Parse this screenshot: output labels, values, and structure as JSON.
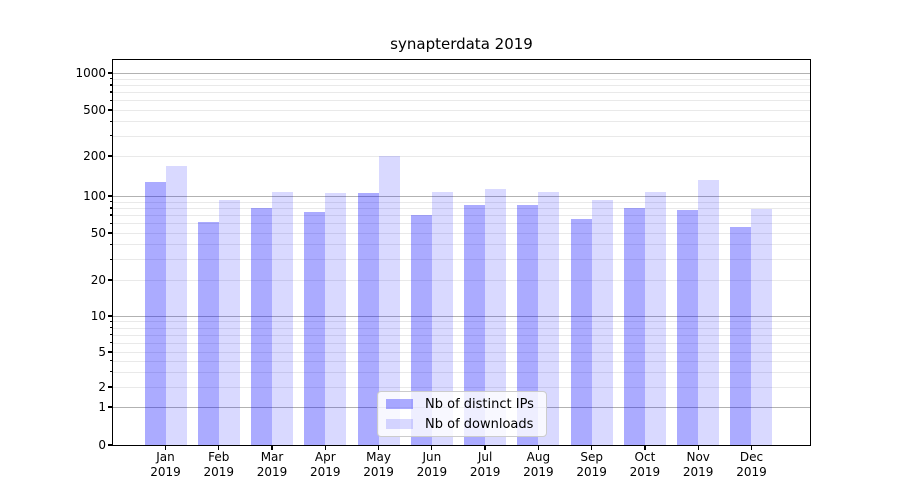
{
  "title": "synapterdata 2019",
  "chart_data": {
    "type": "bar",
    "title": "synapterdata 2019",
    "categories": [
      "Jan 2019",
      "Feb 2019",
      "Mar 2019",
      "Apr 2019",
      "May 2019",
      "Jun 2019",
      "Jul 2019",
      "Aug 2019",
      "Sep 2019",
      "Oct 2019",
      "Nov 2019",
      "Dec 2019"
    ],
    "series": [
      {
        "name": "Nb of distinct IPs",
        "color": "#aaaaff",
        "fill": "rgba(0,0,255,0.33)",
        "values": [
          128,
          62,
          80,
          74,
          106,
          70,
          84,
          84,
          65,
          80,
          77,
          56
        ]
      },
      {
        "name": "Nb of downloads",
        "color": "#d9d9ff",
        "fill": "rgba(0,0,255,0.15)",
        "values": [
          168,
          93,
          108,
          106,
          202,
          107,
          113,
          107,
          92,
          108,
          132,
          78
        ]
      }
    ],
    "xlabel": "",
    "ylabel": "",
    "yscale": "symlog",
    "yticks": [
      0,
      1,
      2,
      5,
      10,
      20,
      50,
      100,
      200,
      500,
      1000
    ],
    "ylim": [
      0,
      1280
    ],
    "grid": true,
    "grid_major_color": "#b2b2b2",
    "grid_minor_color": "#e9e9e9",
    "legend_position": "lower center"
  }
}
